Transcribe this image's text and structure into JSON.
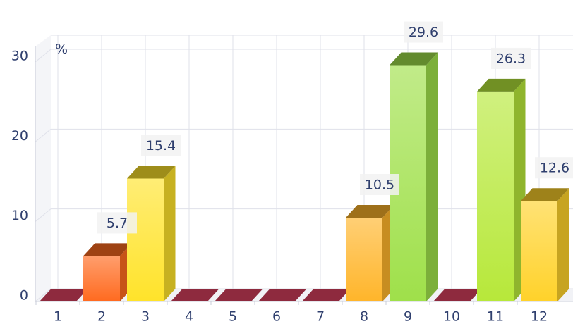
{
  "chart_data": {
    "type": "bar",
    "title": "",
    "xlabel": "",
    "ylabel": "",
    "unit_label": "%",
    "categories": [
      "1",
      "2",
      "3",
      "4",
      "5",
      "6",
      "7",
      "8",
      "9",
      "10",
      "11",
      "12"
    ],
    "values": [
      0,
      5.7,
      15.4,
      0,
      0,
      0,
      0,
      10.5,
      29.6,
      0,
      26.3,
      12.6
    ],
    "value_labels": [
      "",
      "5.7",
      "15.4",
      "",
      "",
      "",
      "",
      "10.5",
      "29.6",
      "",
      "26.3",
      "12.6"
    ],
    "bar_colors": [
      "#8e2a3e",
      "#ff6a1f",
      "#ffe32a",
      "#8e2a3e",
      "#8e2a3e",
      "#8e2a3e",
      "#8e2a3e",
      "#ffb52a",
      "#9fe04a",
      "#8e2a3e",
      "#b7e83a",
      "#ffd22a"
    ],
    "yticks": [
      0,
      10,
      20,
      30
    ],
    "ylim": [
      0,
      30
    ],
    "grid": true,
    "legend": "none",
    "style": "3d-bar"
  }
}
